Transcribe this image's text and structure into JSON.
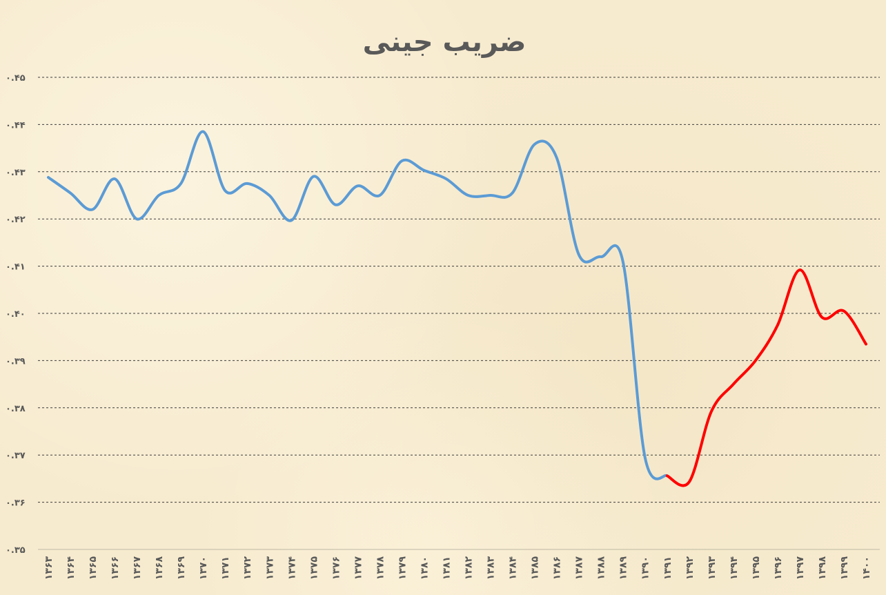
{
  "chart_data": {
    "type": "line",
    "title": "ضریب جینی",
    "xlabel": "",
    "ylabel": "",
    "ylim": [
      0.35,
      0.45
    ],
    "yticks": [
      0.35,
      0.36,
      0.37,
      0.38,
      0.39,
      0.4,
      0.41,
      0.42,
      0.43,
      0.44,
      0.45
    ],
    "ytick_labels": [
      "۰.۳۵",
      "۰.۳۶",
      "۰.۳۷",
      "۰.۳۸",
      "۰.۳۹",
      "۰.۴۰",
      "۰.۴۱",
      "۰.۴۲",
      "۰.۴۳",
      "۰.۴۴",
      "۰.۴۵"
    ],
    "grid": true,
    "categories": [
      "۱۳۶۳",
      "۱۳۶۴",
      "۱۳۶۵",
      "۱۳۶۶",
      "۱۳۶۷",
      "۱۳۶۸",
      "۱۳۶۹",
      "۱۳۷۰",
      "۱۳۷۱",
      "۱۳۷۲",
      "۱۳۷۳",
      "۱۳۷۴",
      "۱۳۷۵",
      "۱۳۷۶",
      "۱۳۷۷",
      "۱۳۷۸",
      "۱۳۷۹",
      "۱۳۸۰",
      "۱۳۸۱",
      "۱۳۸۲",
      "۱۳۸۳",
      "۱۳۸۴",
      "۱۳۸۵",
      "۱۳۸۶",
      "۱۳۸۷",
      "۱۳۸۸",
      "۱۳۸۹",
      "۱۳۹۰",
      "۱۳۹۱",
      "۱۳۹۲",
      "۱۳۹۳",
      "۱۳۹۴",
      "۱۳۹۵",
      "۱۳۹۶",
      "۱۳۹۷",
      "۱۳۹۸",
      "۱۳۹۹",
      "۱۴۰۰"
    ],
    "series": [
      {
        "color": "#5b9bd5",
        "values": [
          0.4288,
          0.4255,
          0.422,
          0.4285,
          0.42,
          0.425,
          0.4275,
          0.4385,
          0.426,
          0.4275,
          0.425,
          0.4197,
          0.429,
          0.423,
          0.427,
          0.425,
          0.4323,
          0.4303,
          0.4285,
          0.425,
          0.425,
          0.4255,
          0.4358,
          0.433,
          0.4125,
          0.412,
          0.411,
          0.3695,
          0.3656,
          null,
          null,
          null,
          null,
          null,
          null,
          null,
          null,
          null
        ]
      },
      {
        "color": "#ff0000",
        "values": [
          null,
          null,
          null,
          null,
          null,
          null,
          null,
          null,
          null,
          null,
          null,
          null,
          null,
          null,
          null,
          null,
          null,
          null,
          null,
          null,
          null,
          null,
          null,
          null,
          null,
          null,
          null,
          null,
          0.3656,
          0.3643,
          0.3792,
          0.385,
          0.39,
          0.3975,
          0.4092,
          0.3992,
          0.4005,
          0.3935
        ]
      }
    ]
  }
}
